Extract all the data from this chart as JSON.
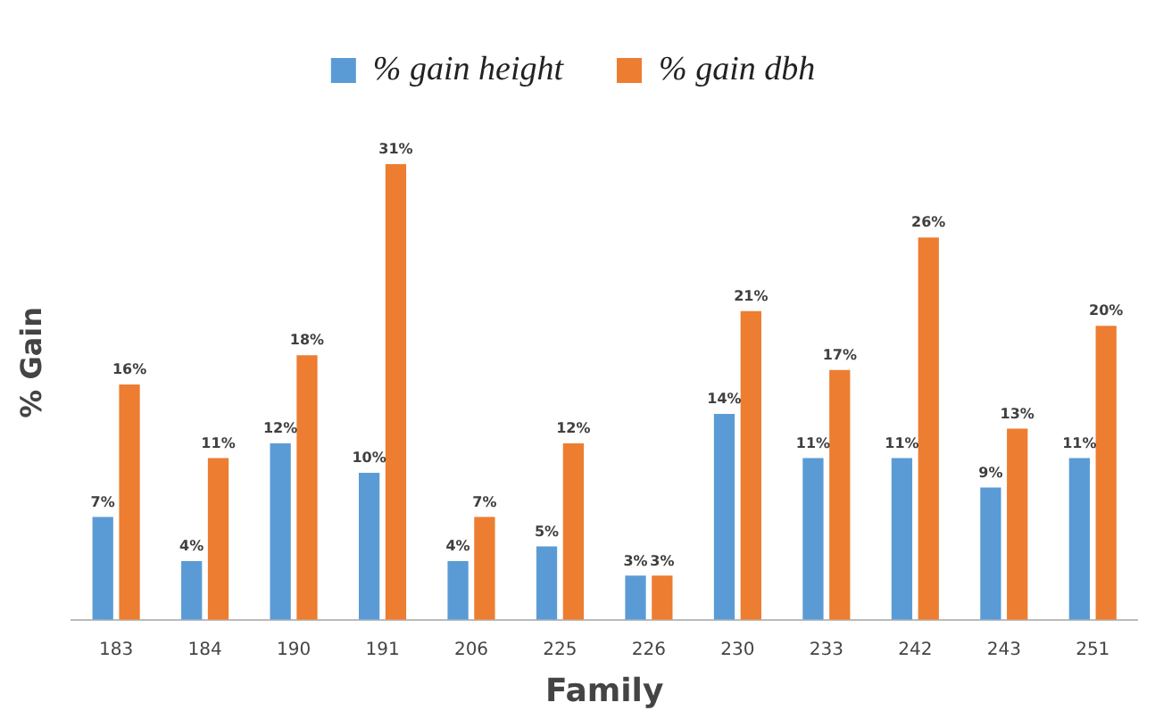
{
  "chart_data": {
    "type": "bar",
    "xlabel": "Family",
    "ylabel": "% Gain",
    "categories": [
      "183",
      "184",
      "190",
      "191",
      "206",
      "225",
      "226",
      "230",
      "233",
      "242",
      "243",
      "251"
    ],
    "series": [
      {
        "name": "% gain height",
        "color": "#5b9bd5",
        "values": [
          7,
          4,
          12,
          10,
          4,
          5,
          3,
          14,
          11,
          11,
          9,
          11
        ],
        "value_labels": [
          "7%",
          "4%",
          "12%",
          "10%",
          "4%",
          "5%",
          "3%",
          "14%",
          "11%",
          "11%",
          "9%",
          "11%"
        ]
      },
      {
        "name": "% gain dbh",
        "color": "#ed7d31",
        "values": [
          16,
          11,
          18,
          31,
          7,
          12,
          3,
          21,
          17,
          26,
          13,
          20
        ],
        "value_labels": [
          "16%",
          "11%",
          "18%",
          "31%",
          "7%",
          "12%",
          "3%",
          "21%",
          "17%",
          "26%",
          "13%",
          "20%"
        ]
      }
    ],
    "legend": "top",
    "grid": false
  }
}
